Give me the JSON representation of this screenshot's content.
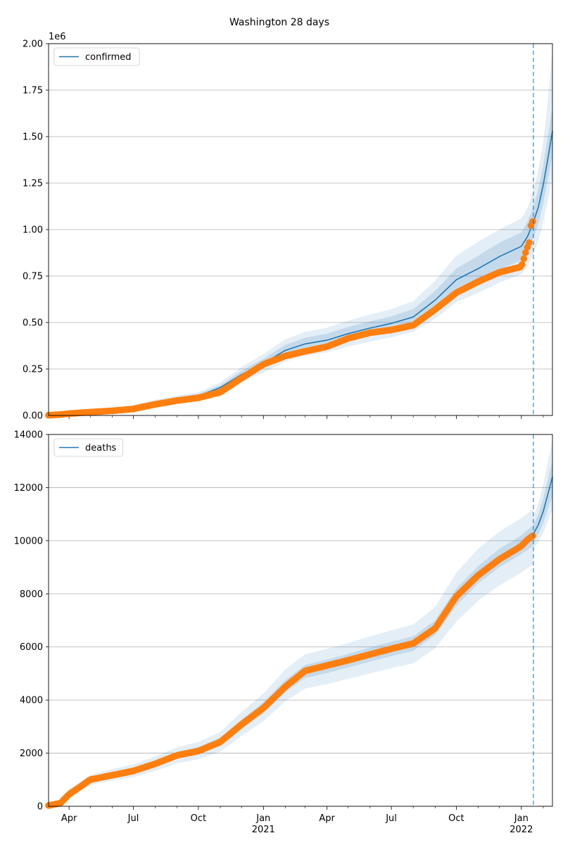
{
  "figure_title": "Washington 28 days",
  "colors": {
    "model_line": "#1f77b4",
    "observed": "#ff7f0e",
    "band": "#1f77b4",
    "grid": "#b0b0b0",
    "forecast_marker": "#1f77b4"
  },
  "x_ticks": [
    {
      "label": "Apr",
      "sub": "",
      "date": "2020-04-01"
    },
    {
      "label": "Jul",
      "sub": "",
      "date": "2020-07-01"
    },
    {
      "label": "Oct",
      "sub": "",
      "date": "2020-10-01"
    },
    {
      "label": "Jan",
      "sub": "2021",
      "date": "2021-01-01"
    },
    {
      "label": "Apr",
      "sub": "",
      "date": "2021-04-01"
    },
    {
      "label": "Jul",
      "sub": "",
      "date": "2021-07-01"
    },
    {
      "label": "Oct",
      "sub": "",
      "date": "2021-10-01"
    },
    {
      "label": "Jan",
      "sub": "2022",
      "date": "2022-01-01"
    }
  ],
  "chart_data": [
    {
      "type": "line",
      "title": "",
      "xlabel": "",
      "ylabel": "",
      "y_multiplier_label": "1e6",
      "xlim": [
        "2020-03-03",
        "2022-02-14"
      ],
      "ylim": [
        0,
        2.0
      ],
      "y_ticks": [
        0,
        0.25,
        0.5,
        0.75,
        1.0,
        1.25,
        1.5,
        1.75,
        2.0
      ],
      "y_tick_labels": [
        "0.00",
        "0.25",
        "0.50",
        "0.75",
        "1.00",
        "1.25",
        "1.50",
        "1.75",
        "2.00"
      ],
      "grid": "horizontal",
      "legend": {
        "position": "top-left",
        "entries": [
          "confirmed"
        ]
      },
      "forecast_start": "2022-01-18",
      "model": {
        "name": "confirmed",
        "x": [
          "2020-03-03",
          "2020-04-01",
          "2020-05-01",
          "2020-06-01",
          "2020-07-01",
          "2020-08-01",
          "2020-09-01",
          "2020-10-01",
          "2020-11-01",
          "2020-12-01",
          "2021-01-01",
          "2021-02-01",
          "2021-03-01",
          "2021-04-01",
          "2021-05-01",
          "2021-06-01",
          "2021-07-01",
          "2021-08-01",
          "2021-09-01",
          "2021-10-01",
          "2021-11-01",
          "2021-12-01",
          "2022-01-01",
          "2022-01-10",
          "2022-01-18",
          "2022-01-25",
          "2022-02-01",
          "2022-02-07",
          "2022-02-14"
        ],
        "y": [
          0.002,
          0.012,
          0.02,
          0.03,
          0.045,
          0.07,
          0.09,
          0.105,
          0.15,
          0.22,
          0.28,
          0.35,
          0.385,
          0.405,
          0.44,
          0.47,
          0.495,
          0.53,
          0.62,
          0.73,
          0.79,
          0.855,
          0.91,
          0.965,
          1.04,
          1.12,
          1.24,
          1.37,
          1.53
        ],
        "band_inner": [
          [
            0.002,
            0.0025
          ],
          [
            0.011,
            0.013
          ],
          [
            0.018,
            0.022
          ],
          [
            0.027,
            0.034
          ],
          [
            0.04,
            0.05
          ],
          [
            0.063,
            0.077
          ],
          [
            0.082,
            0.098
          ],
          [
            0.096,
            0.115
          ],
          [
            0.137,
            0.163
          ],
          [
            0.2,
            0.24
          ],
          [
            0.255,
            0.305
          ],
          [
            0.32,
            0.38
          ],
          [
            0.353,
            0.418
          ],
          [
            0.372,
            0.44
          ],
          [
            0.405,
            0.476
          ],
          [
            0.434,
            0.506
          ],
          [
            0.458,
            0.533
          ],
          [
            0.49,
            0.572
          ],
          [
            0.57,
            0.67
          ],
          [
            0.67,
            0.79
          ],
          [
            0.725,
            0.86
          ],
          [
            0.785,
            0.93
          ],
          [
            0.835,
            0.985
          ],
          [
            0.885,
            1.045
          ],
          [
            0.955,
            1.125
          ],
          [
            1.03,
            1.215
          ],
          [
            1.14,
            1.345
          ],
          [
            1.26,
            1.49
          ],
          [
            1.4,
            1.66
          ]
        ],
        "band_outer": [
          [
            0.0015,
            0.003
          ],
          [
            0.009,
            0.015
          ],
          [
            0.015,
            0.025
          ],
          [
            0.023,
            0.038
          ],
          [
            0.035,
            0.056
          ],
          [
            0.056,
            0.085
          ],
          [
            0.073,
            0.107
          ],
          [
            0.086,
            0.125
          ],
          [
            0.123,
            0.178
          ],
          [
            0.18,
            0.26
          ],
          [
            0.23,
            0.33
          ],
          [
            0.29,
            0.41
          ],
          [
            0.32,
            0.45
          ],
          [
            0.34,
            0.472
          ],
          [
            0.37,
            0.51
          ],
          [
            0.398,
            0.543
          ],
          [
            0.42,
            0.572
          ],
          [
            0.45,
            0.615
          ],
          [
            0.52,
            0.725
          ],
          [
            0.61,
            0.86
          ],
          [
            0.66,
            0.935
          ],
          [
            0.715,
            1.0
          ],
          [
            0.76,
            1.06
          ],
          [
            0.805,
            1.12
          ],
          [
            0.87,
            1.21
          ],
          [
            0.94,
            1.32
          ],
          [
            1.04,
            1.47
          ],
          [
            1.15,
            1.68
          ],
          [
            1.28,
            1.97
          ]
        ]
      },
      "observed": {
        "x": [
          "2020-03-03",
          "2020-03-20",
          "2020-04-01",
          "2020-05-01",
          "2020-06-01",
          "2020-07-01",
          "2020-08-01",
          "2020-09-01",
          "2020-10-01",
          "2020-11-01",
          "2020-12-01",
          "2021-01-01",
          "2021-02-01",
          "2021-03-01",
          "2021-04-01",
          "2021-05-01",
          "2021-06-01",
          "2021-07-01",
          "2021-08-01",
          "2021-09-01",
          "2021-10-01",
          "2021-11-01",
          "2021-12-01",
          "2022-01-01",
          "2022-01-05",
          "2022-01-08",
          "2022-01-12",
          "2022-01-15",
          "2022-01-18"
        ],
        "y": [
          0.001,
          0.005,
          0.01,
          0.018,
          0.025,
          0.035,
          0.06,
          0.08,
          0.095,
          0.125,
          0.2,
          0.275,
          0.32,
          0.345,
          0.37,
          0.415,
          0.445,
          0.46,
          0.485,
          0.57,
          0.66,
          0.72,
          0.77,
          0.8,
          0.85,
          0.89,
          0.93,
          1.04,
          1.045
        ]
      }
    },
    {
      "type": "line",
      "title": "",
      "xlabel": "",
      "ylabel": "",
      "xlim": [
        "2020-03-03",
        "2022-02-14"
      ],
      "ylim": [
        0,
        14000
      ],
      "y_ticks": [
        0,
        2000,
        4000,
        6000,
        8000,
        10000,
        12000,
        14000
      ],
      "y_tick_labels": [
        "0",
        "2000",
        "4000",
        "6000",
        "8000",
        "10000",
        "12000",
        "14000"
      ],
      "grid": "horizontal",
      "legend": {
        "position": "top-left",
        "entries": [
          "deaths"
        ]
      },
      "forecast_start": "2022-01-18",
      "model": {
        "name": "deaths",
        "x": [
          "2022-01-18",
          "2022-01-25",
          "2022-02-01",
          "2022-02-07",
          "2022-02-14"
        ],
        "y": [
          10250,
          10600,
          11100,
          11700,
          12400
        ],
        "band_inner": [
          [
            9950,
            10600
          ],
          [
            10250,
            11000
          ],
          [
            10650,
            11600
          ],
          [
            11150,
            12250
          ],
          [
            11700,
            13000
          ]
        ],
        "band_outer": [
          [
            9700,
            10900
          ],
          [
            9950,
            11400
          ],
          [
            10300,
            12100
          ],
          [
            10700,
            12900
          ],
          [
            11200,
            13800
          ]
        ]
      },
      "historic_band": {
        "x": [
          "2020-03-20",
          "2020-04-01",
          "2020-05-01",
          "2020-06-01",
          "2020-07-01",
          "2020-08-01",
          "2020-09-01",
          "2020-10-01",
          "2020-11-01",
          "2020-12-01",
          "2021-01-01",
          "2021-02-01",
          "2021-03-01",
          "2021-04-01",
          "2021-05-01",
          "2021-06-01",
          "2021-07-01",
          "2021-08-01",
          "2021-09-01",
          "2021-10-01",
          "2021-11-01",
          "2021-12-01",
          "2022-01-01",
          "2022-01-18"
        ],
        "inner": [
          [
            120,
            180
          ],
          [
            420,
            560
          ],
          [
            900,
            1080
          ],
          [
            1080,
            1280
          ],
          [
            1230,
            1440
          ],
          [
            1480,
            1720
          ],
          [
            1790,
            2050
          ],
          [
            1950,
            2230
          ],
          [
            2270,
            2580
          ],
          [
            2900,
            3260
          ],
          [
            3500,
            3920
          ],
          [
            4300,
            4750
          ],
          [
            4830,
            5320
          ],
          [
            5020,
            5520
          ],
          [
            5230,
            5740
          ],
          [
            5450,
            5980
          ],
          [
            5650,
            6190
          ],
          [
            5850,
            6400
          ],
          [
            6450,
            7000
          ],
          [
            7550,
            8200
          ],
          [
            8400,
            9050
          ],
          [
            9000,
            9700
          ],
          [
            9500,
            10200
          ],
          [
            9800,
            10600
          ]
        ],
        "outer": [
          [
            80,
            240
          ],
          [
            340,
            650
          ],
          [
            800,
            1180
          ],
          [
            960,
            1400
          ],
          [
            1100,
            1580
          ],
          [
            1330,
            1880
          ],
          [
            1620,
            2230
          ],
          [
            1770,
            2420
          ],
          [
            2060,
            2800
          ],
          [
            2650,
            3550
          ],
          [
            3200,
            4250
          ],
          [
            3950,
            5150
          ],
          [
            4430,
            5720
          ],
          [
            4600,
            5930
          ],
          [
            4800,
            6150
          ],
          [
            5000,
            6400
          ],
          [
            5200,
            6620
          ],
          [
            5380,
            6850
          ],
          [
            5950,
            7500
          ],
          [
            6950,
            8800
          ],
          [
            7750,
            9700
          ],
          [
            8320,
            10350
          ],
          [
            8800,
            10850
          ],
          [
            9100,
            11200
          ]
        ]
      },
      "observed": {
        "x": [
          "2020-03-03",
          "2020-03-20",
          "2020-04-01",
          "2020-04-15",
          "2020-05-01",
          "2020-06-01",
          "2020-07-01",
          "2020-08-01",
          "2020-09-01",
          "2020-10-01",
          "2020-11-01",
          "2020-12-01",
          "2021-01-01",
          "2021-02-01",
          "2021-03-01",
          "2021-04-01",
          "2021-05-01",
          "2021-06-01",
          "2021-07-01",
          "2021-08-01",
          "2021-09-01",
          "2021-10-01",
          "2021-11-01",
          "2021-12-01",
          "2022-01-01",
          "2022-01-10",
          "2022-01-18"
        ],
        "y": [
          30,
          120,
          450,
          700,
          1000,
          1170,
          1330,
          1600,
          1920,
          2080,
          2420,
          3080,
          3700,
          4500,
          5100,
          5300,
          5500,
          5720,
          5930,
          6130,
          6700,
          7900,
          8700,
          9300,
          9800,
          10050,
          10200
        ]
      }
    }
  ]
}
